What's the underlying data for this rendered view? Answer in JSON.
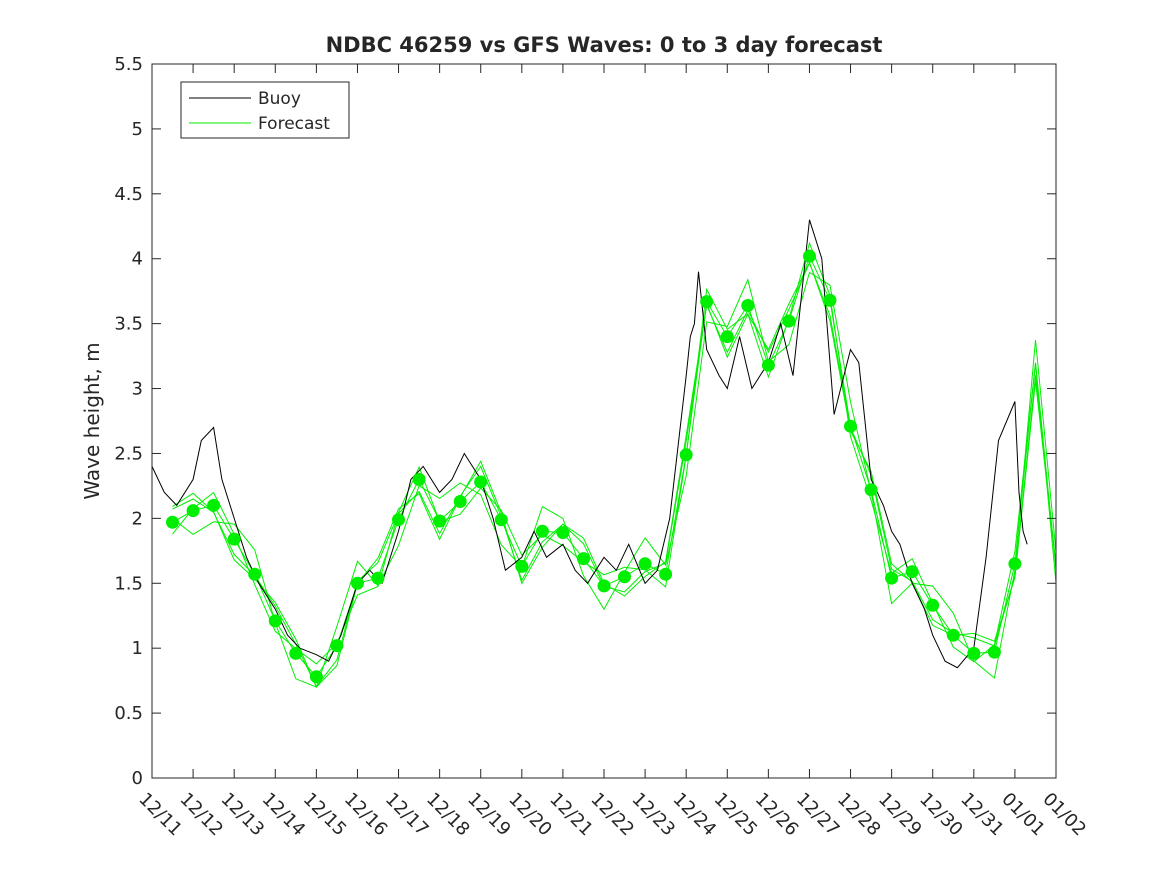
{
  "chart_data": {
    "type": "line",
    "title": "NDBC 46259 vs GFS Waves: 0 to 3 day forecast",
    "xlabel": "",
    "ylabel": "Wave height, m",
    "xlim": [
      0,
      22
    ],
    "ylim": [
      0,
      5.5
    ],
    "yticks": [
      "0",
      "0.5",
      "1",
      "1.5",
      "2",
      "2.5",
      "3",
      "3.5",
      "4",
      "4.5",
      "5",
      "5.5"
    ],
    "xtick_labels": [
      "12/11",
      "12/12",
      "12/13",
      "12/14",
      "12/15",
      "12/16",
      "12/17",
      "12/18",
      "12/19",
      "12/20",
      "12/21",
      "12/22",
      "12/23",
      "12/24",
      "12/25",
      "12/26",
      "12/27",
      "12/28",
      "12/29",
      "12/30",
      "12/31",
      "01/01",
      "01/02"
    ],
    "legend": {
      "position": "top-left",
      "entries": [
        "Buoy",
        "Forecast"
      ]
    },
    "colors": {
      "buoy": "#000000",
      "forecast": "#00ee00",
      "axes": "#262626"
    },
    "series": [
      {
        "name": "Buoy",
        "x": [
          0,
          0.3,
          0.6,
          1,
          1.2,
          1.5,
          1.7,
          2,
          2.3,
          2.6,
          3,
          3.3,
          3.6,
          4,
          4.3,
          4.6,
          5,
          5.3,
          5.6,
          6,
          6.3,
          6.6,
          7,
          7.3,
          7.6,
          8,
          8.3,
          8.6,
          9,
          9.3,
          9.6,
          10,
          10.3,
          10.6,
          11,
          11.3,
          11.6,
          12,
          12.3,
          12.6,
          13,
          13.1,
          13.2,
          13.3,
          13.5,
          13.8,
          14,
          14.3,
          14.6,
          15,
          15.3,
          15.6,
          16,
          16.3,
          16.6,
          17,
          17.2,
          17.5,
          17.8,
          18,
          18.2,
          18.5,
          18.8,
          19,
          19.3,
          19.6,
          20,
          20.3,
          20.6,
          21,
          21.1,
          21.2,
          21.3
        ],
        "y": [
          2.4,
          2.2,
          2.1,
          2.3,
          2.6,
          2.7,
          2.3,
          2.0,
          1.7,
          1.5,
          1.3,
          1.1,
          1.0,
          0.95,
          0.9,
          1.1,
          1.5,
          1.6,
          1.5,
          1.9,
          2.3,
          2.4,
          2.2,
          2.3,
          2.5,
          2.3,
          2.0,
          1.6,
          1.7,
          1.9,
          1.7,
          1.8,
          1.6,
          1.5,
          1.7,
          1.6,
          1.8,
          1.5,
          1.6,
          2.0,
          3.1,
          3.4,
          3.5,
          3.9,
          3.3,
          3.1,
          3.0,
          3.4,
          3.0,
          3.2,
          3.5,
          3.1,
          4.3,
          4.0,
          2.8,
          3.3,
          3.2,
          2.3,
          2.1,
          1.9,
          1.8,
          1.5,
          1.3,
          1.1,
          0.9,
          0.85,
          1.0,
          1.7,
          2.6,
          2.9,
          2.2,
          1.9,
          1.8
        ]
      },
      {
        "name": "Forecast",
        "x": [
          0.5,
          1,
          1.5,
          2,
          2.5,
          3,
          3.5,
          4,
          4.5,
          5,
          5.5,
          6,
          6.5,
          7,
          7.5,
          8,
          8.5,
          9,
          9.5,
          10,
          10.5,
          11,
          11.5,
          12,
          12.5,
          13,
          13.5,
          14,
          14.5,
          15,
          15.5,
          16,
          16.5,
          17,
          17.5,
          18,
          18.5,
          19,
          19.5,
          20,
          20.5,
          21,
          21.5,
          22
        ],
        "y": [
          1.97,
          2.06,
          2.1,
          1.84,
          1.57,
          1.21,
          0.96,
          0.78,
          1.02,
          1.5,
          1.54,
          1.99,
          2.3,
          1.98,
          2.13,
          2.28,
          1.99,
          1.63,
          1.9,
          1.89,
          1.69,
          1.48,
          1.55,
          1.65,
          1.57,
          2.49,
          3.67,
          3.4,
          3.64,
          3.18,
          3.52,
          4.02,
          3.68,
          2.71,
          2.22,
          1.54,
          1.59,
          1.33,
          1.1,
          0.96,
          0.97,
          1.65,
          3.2,
          1.6
        ]
      }
    ],
    "forecast_markers": {
      "x": [
        0.5,
        1,
        1.5,
        2,
        2.5,
        3,
        3.5,
        4,
        4.5,
        5,
        5.5,
        6,
        6.5,
        7,
        7.5,
        8,
        8.5,
        9,
        9.5,
        10,
        10.5,
        11,
        11.5,
        12,
        12.5,
        13,
        13.5,
        14,
        14.5,
        15,
        15.5,
        16,
        16.5,
        17,
        17.5,
        18,
        18.5,
        19,
        19.5,
        20,
        20.5,
        21
      ],
      "y": [
        1.97,
        2.06,
        2.1,
        1.84,
        1.57,
        1.21,
        0.96,
        0.78,
        1.02,
        1.5,
        1.54,
        1.99,
        2.3,
        1.98,
        2.13,
        2.28,
        1.99,
        1.63,
        1.9,
        1.89,
        1.69,
        1.48,
        1.55,
        1.65,
        1.57,
        2.49,
        3.67,
        3.4,
        3.64,
        3.18,
        3.52,
        4.02,
        3.68,
        2.71,
        2.22,
        1.54,
        1.59,
        1.33,
        1.1,
        0.96,
        0.97,
        1.65
      ]
    }
  }
}
